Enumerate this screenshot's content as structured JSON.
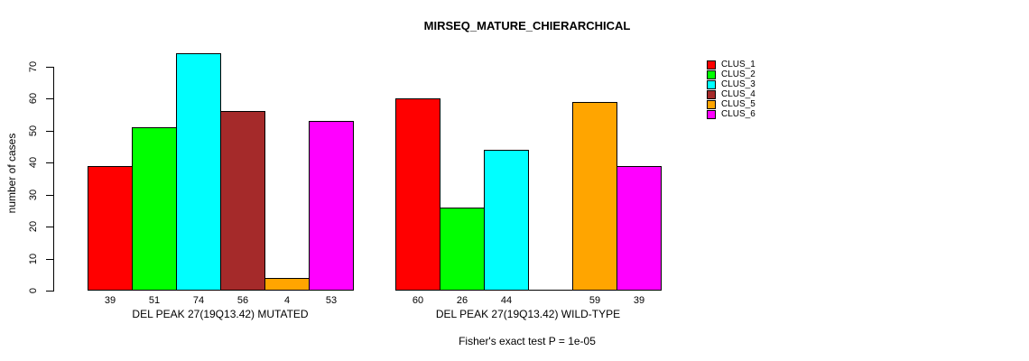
{
  "chart_data": {
    "type": "bar",
    "title": "MIRSEQ_MATURE_CHIERARCHICAL",
    "ylabel": "number of cases",
    "xlabel": "",
    "ylim": [
      0,
      70
    ],
    "yticks": [
      0,
      10,
      20,
      30,
      40,
      50,
      60,
      70
    ],
    "grid": false,
    "legend_position": "right",
    "categories": [
      "DEL PEAK 27(19Q13.42) MUTATED",
      "DEL PEAK 27(19Q13.42) WILD-TYPE"
    ],
    "series": [
      {
        "name": "CLUS_1",
        "color": "#FF0000",
        "values": [
          39,
          60
        ]
      },
      {
        "name": "CLUS_2",
        "color": "#00FF00",
        "values": [
          51,
          26
        ]
      },
      {
        "name": "CLUS_3",
        "color": "#00FFFF",
        "values": [
          74,
          44
        ]
      },
      {
        "name": "CLUS_4",
        "color": "#A52A2A",
        "values": [
          56,
          null
        ]
      },
      {
        "name": "CLUS_5",
        "color": "#FFA500",
        "values": [
          4,
          59
        ]
      },
      {
        "name": "CLUS_6",
        "color": "#FF00FF",
        "values": [
          53,
          39
        ]
      }
    ],
    "bar_value_labels_shown": true,
    "annotation": "Fisher's exact test P = 1e-05"
  }
}
